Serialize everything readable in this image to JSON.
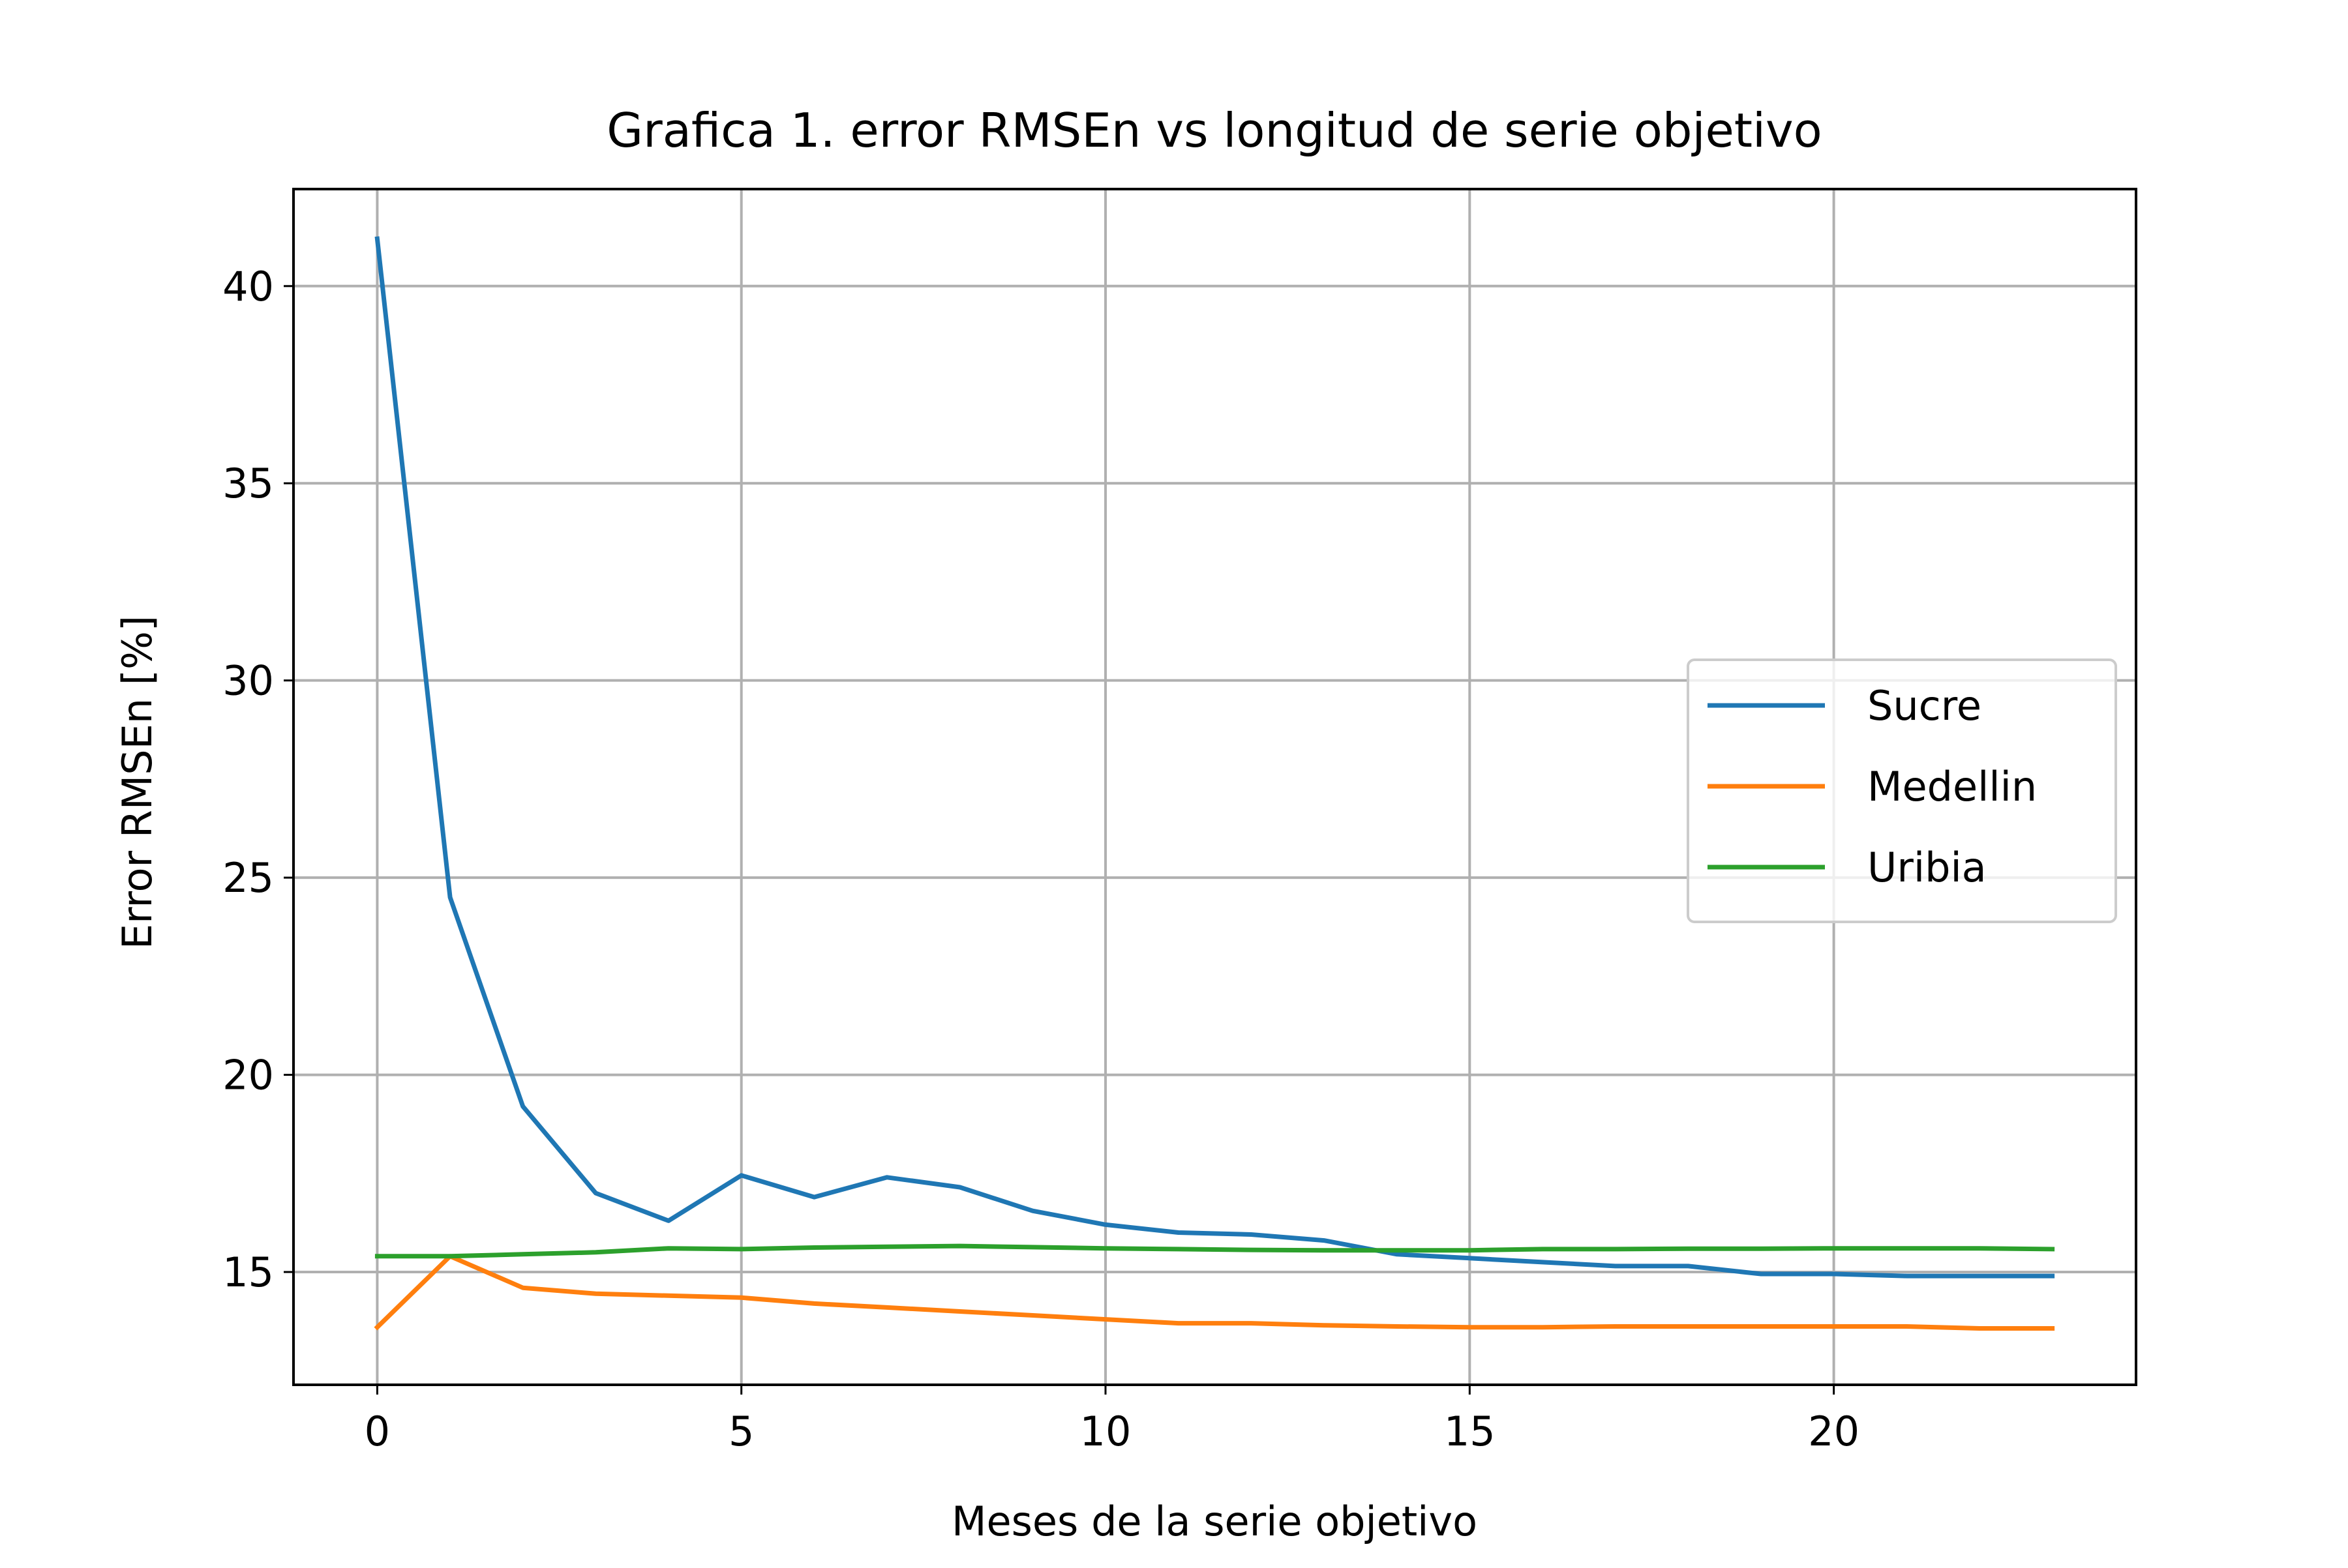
{
  "chart_data": {
    "type": "line",
    "title": "Grafica 1. error RMSEn vs longitud de serie objetivo",
    "xlabel": "Meses de la serie objetivo",
    "ylabel": "Error RMSEn [%]",
    "xlim": [
      -1.15,
      24.15
    ],
    "ylim": [
      12.14,
      42.46
    ],
    "xticks": [
      0,
      5,
      10,
      15,
      20
    ],
    "yticks": [
      15,
      20,
      25,
      30,
      35,
      40
    ],
    "grid": true,
    "legend_position": "center-right",
    "x": [
      0,
      1,
      2,
      3,
      4,
      5,
      6,
      7,
      8,
      9,
      10,
      11,
      12,
      13,
      14,
      15,
      16,
      17,
      18,
      19,
      20,
      21,
      22,
      23
    ],
    "series": [
      {
        "name": "Sucre",
        "color": "#1f77b4",
        "values": [
          41.2,
          24.5,
          19.2,
          17.0,
          16.3,
          17.45,
          16.9,
          17.4,
          17.15,
          16.55,
          16.2,
          16.0,
          15.95,
          15.8,
          15.45,
          15.35,
          15.25,
          15.15,
          15.15,
          14.95,
          14.95,
          14.9,
          14.9,
          14.9
        ]
      },
      {
        "name": "Medellin",
        "color": "#ff7f0e",
        "values": [
          13.6,
          15.4,
          14.6,
          14.45,
          14.4,
          14.35,
          14.2,
          14.1,
          14.0,
          13.9,
          13.8,
          13.7,
          13.7,
          13.65,
          13.62,
          13.6,
          13.6,
          13.62,
          13.62,
          13.62,
          13.62,
          13.62,
          13.57,
          13.57
        ]
      },
      {
        "name": "Uribia",
        "color": "#2ca02c",
        "values": [
          15.4,
          15.4,
          15.45,
          15.5,
          15.6,
          15.58,
          15.62,
          15.64,
          15.66,
          15.63,
          15.6,
          15.58,
          15.56,
          15.55,
          15.55,
          15.55,
          15.58,
          15.58,
          15.59,
          15.59,
          15.6,
          15.6,
          15.6,
          15.58
        ]
      }
    ]
  }
}
